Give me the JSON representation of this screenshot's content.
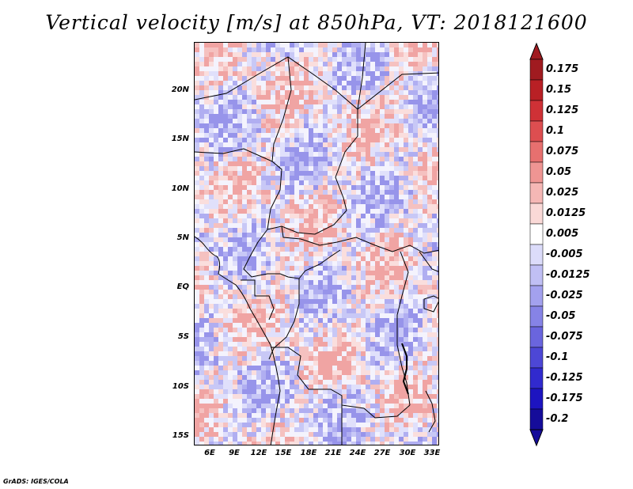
{
  "title": "Vertical velocity [m/s] at 850hPa, VT: 2018121600",
  "credit": "GrADS: IGES/COLA",
  "map": {
    "lat_labels": [
      "20N",
      "15N",
      "10N",
      "5N",
      "EQ",
      "5S",
      "10S",
      "15S"
    ],
    "lon_labels": [
      "6E",
      "9E",
      "12E",
      "15E",
      "18E",
      "21E",
      "24E",
      "27E",
      "30E",
      "33E"
    ]
  },
  "colorbar": {
    "labels": [
      "0.175",
      "0.15",
      "0.125",
      "0.1",
      "0.075",
      "0.05",
      "0.025",
      "0.0125",
      "0.005",
      "-0.005",
      "-0.0125",
      "-0.025",
      "-0.05",
      "-0.075",
      "-0.1",
      "-0.125",
      "-0.175",
      "-0.2"
    ],
    "colors": [
      "#a01b20",
      "#b92025",
      "#cf3136",
      "#dd4e50",
      "#e7706f",
      "#ef9593",
      "#f5b7b5",
      "#fad9d7",
      "#ffffff",
      "#dcdcfa",
      "#c0bff4",
      "#a3a1ee",
      "#8683e6",
      "#6a65de",
      "#4d47d6",
      "#312ace",
      "#1d14c0",
      "#150c9a"
    ],
    "top_arrow_color": "#a01b20",
    "bottom_arrow_color": "#150c9a"
  }
}
